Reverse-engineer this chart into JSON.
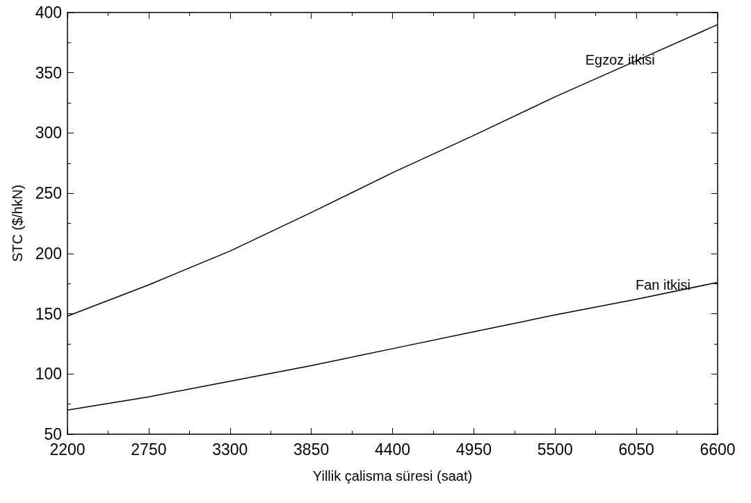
{
  "chart_data": {
    "type": "line",
    "xlabel": "Yillik çalisma süresi (saat)",
    "ylabel": "STC ($/hkN)",
    "x": [
      2200,
      2750,
      3300,
      3850,
      4400,
      4950,
      5500,
      6050,
      6600
    ],
    "series": [
      {
        "color": "#000000",
        "values": [
          148,
          174,
          202,
          234,
          267,
          298,
          330,
          360,
          390
        ]
      },
      {
        "color": "#000000",
        "values": [
          70,
          81,
          94,
          107,
          121,
          135,
          149,
          162,
          176
        ]
      }
    ],
    "annotations": [
      {
        "text": "Egzoz itkisi",
        "x": 5940,
        "y": 354
      },
      {
        "text": "Fan itkisi",
        "x": 6230,
        "y": 167
      }
    ],
    "xlim": [
      2200,
      6600
    ],
    "xticks": [
      2200,
      2750,
      3300,
      3850,
      4400,
      4950,
      5500,
      6050,
      6600
    ],
    "ylim": [
      50,
      400
    ],
    "yticks": [
      50,
      100,
      150,
      200,
      250,
      300,
      350,
      400
    ],
    "grid": false,
    "marker": "none",
    "line_style": "solid"
  }
}
